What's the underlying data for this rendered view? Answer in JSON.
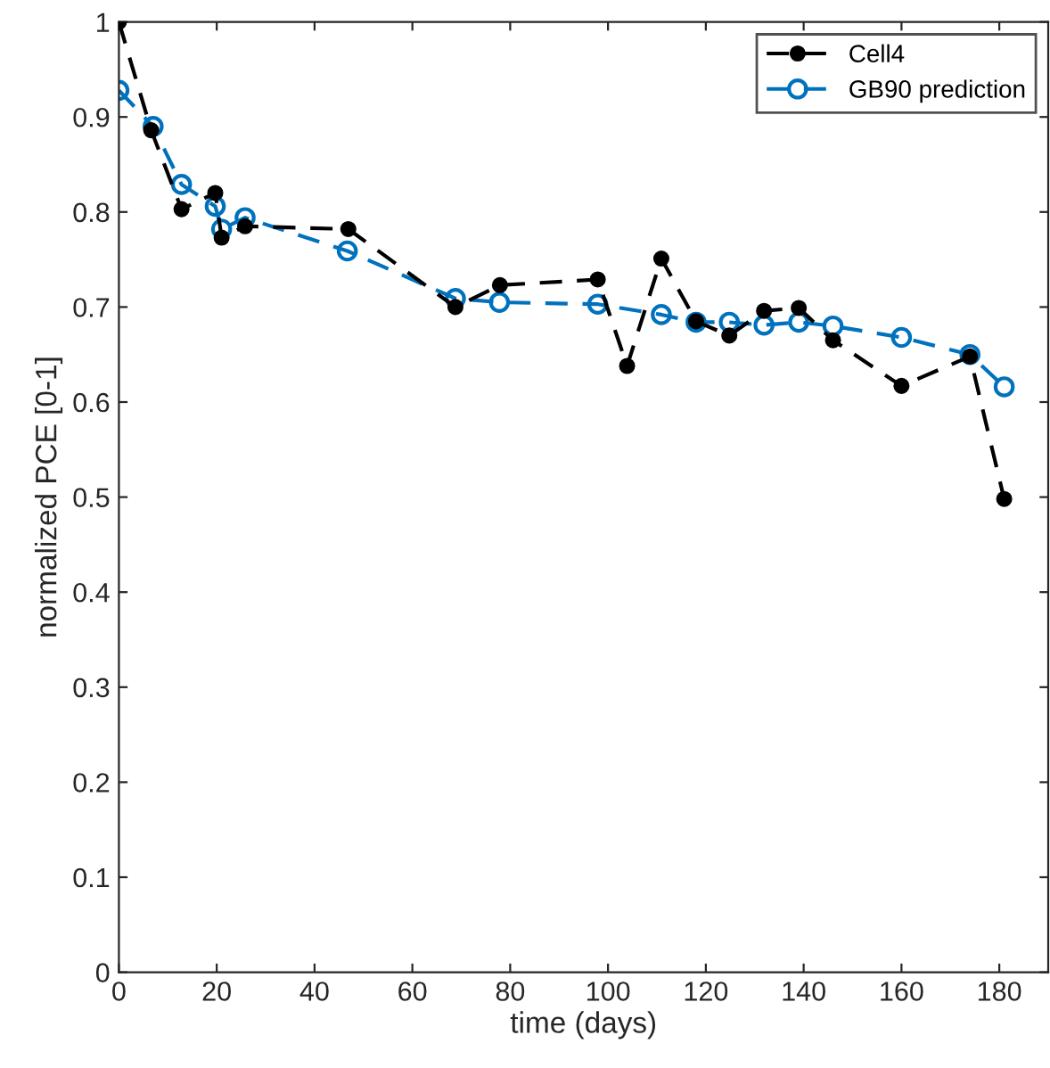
{
  "chart_data": {
    "type": "line",
    "xlabel": "time (days)",
    "ylabel": "normalized PCE [0-1]",
    "xlim": [
      0,
      190
    ],
    "ylim": [
      0,
      1
    ],
    "xticks": [
      0,
      20,
      40,
      60,
      80,
      100,
      120,
      140,
      160,
      180
    ],
    "yticks": [
      0,
      0.1,
      0.2,
      0.3,
      0.4,
      0.5,
      0.6,
      0.7,
      0.8,
      0.9,
      1
    ],
    "grid": false,
    "legend": "top right",
    "line_style": "dashed",
    "series": [
      {
        "name": "Cell4",
        "color": "#000000",
        "marker": "circle",
        "x": [
          0,
          6.6,
          12.8,
          19.7,
          21,
          25.8,
          46.9,
          68.8,
          77.9,
          97.9,
          103.9,
          110.9,
          118,
          124.8,
          131.9,
          139,
          146,
          160,
          174,
          181
        ],
        "values": [
          1.0,
          0.886,
          0.803,
          0.82,
          0.773,
          0.785,
          0.782,
          0.7,
          0.723,
          0.729,
          0.638,
          0.751,
          0.685,
          0.67,
          0.696,
          0.699,
          0.665,
          0.617,
          0.648,
          0.498
        ]
      },
      {
        "name": "GB90 prediction",
        "color": "#0072bd",
        "marker": "circle",
        "x": [
          0,
          7,
          12.8,
          19.7,
          21,
          25.8,
          46.7,
          68.8,
          77.8,
          97.9,
          110.9,
          118,
          124.8,
          131.9,
          139,
          146,
          160,
          174,
          181
        ],
        "values": [
          0.928,
          0.89,
          0.829,
          0.806,
          0.782,
          0.794,
          0.759,
          0.709,
          0.705,
          0.703,
          0.692,
          0.684,
          0.684,
          0.681,
          0.684,
          0.68,
          0.668,
          0.65,
          0.616
        ]
      }
    ]
  }
}
